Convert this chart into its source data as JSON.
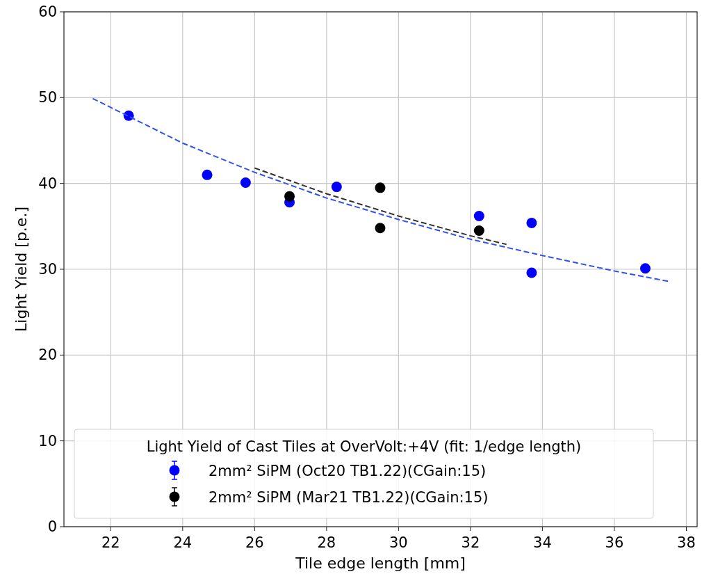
{
  "chart_data": {
    "type": "scatter",
    "xlabel": "Tile edge length [mm]",
    "ylabel": "Light Yield [p.e.]",
    "legend_title": "Light Yield of Cast Tiles at OverVolt:+4V (fit: 1/edge length)",
    "xlim": [
      20.7,
      38.3
    ],
    "xticks": [
      22,
      24,
      26,
      28,
      30,
      32,
      34,
      36,
      38
    ],
    "ylim": [
      0,
      60
    ],
    "yticks": [
      0,
      10,
      20,
      30,
      40,
      50,
      60
    ],
    "grid": true,
    "legend": "bottom",
    "marker": "circle",
    "series": [
      {
        "name": "2mm² SiPM (Oct20 TB1.22)(CGain:15)",
        "color": "#0000ff",
        "x": [
          22.5,
          24.68,
          25.75,
          26.97,
          28.28,
          32.24,
          33.7,
          33.7,
          36.86
        ],
        "values": [
          47.9,
          41.0,
          40.1,
          37.8,
          39.6,
          36.2,
          35.4,
          29.6,
          30.1
        ]
      },
      {
        "name": "2mm² SiPM (Mar21 TB1.22)(CGain:15)",
        "color": "#000000",
        "x": [
          26.97,
          29.49,
          29.49,
          32.24
        ],
        "values": [
          38.5,
          39.5,
          34.8,
          34.5
        ]
      },
      {
        "type": "line",
        "color": "#3050f0",
        "line_style": "dashed",
        "marker": "none",
        "x": [
          21.5,
          24,
          26,
          28,
          30,
          32,
          34,
          36,
          37.5
        ],
        "values": [
          49.9,
          44.7,
          41.3,
          38.3,
          35.8,
          33.5,
          31.6,
          29.8,
          28.6
        ]
      },
      {
        "type": "line",
        "color": "#303030",
        "line_style": "dashed",
        "marker": "none",
        "x": [
          26,
          28,
          30,
          32,
          33
        ],
        "values": [
          41.8,
          38.8,
          36.2,
          33.9,
          32.9
        ]
      }
    ]
  }
}
